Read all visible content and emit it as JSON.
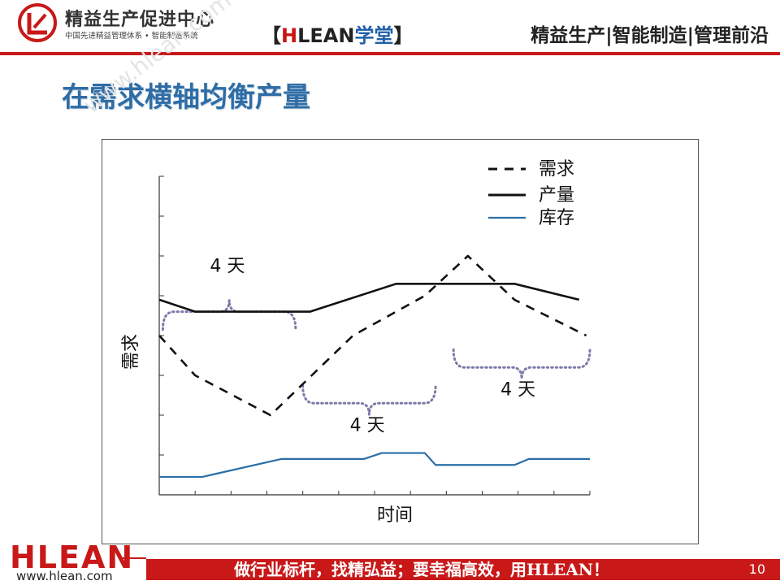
{
  "header": {
    "brand_name": "精益生产促进中心",
    "brand_sub": "中国先进精益管理体系 • 智能制造系统",
    "center_left_bracket": "【",
    "center_h": "H",
    "center_lean": "LEAN",
    "center_school": "学堂",
    "center_right_bracket": "】",
    "right_title": "精益生产|智能制造|管理前沿",
    "accent_color": "#c81818"
  },
  "slide": {
    "title": "在需求横轴均衡产量",
    "watermark": "www.hlean.com"
  },
  "chart_data": {
    "type": "line",
    "xlabel": "时间",
    "ylabel": "需求",
    "xlim": [
      0,
      12
    ],
    "ylim": [
      0,
      8
    ],
    "grid": false,
    "legend_placement": "top-right",
    "series": [
      {
        "name": "需求",
        "style": "dashed",
        "color": "#111111",
        "x": [
          0,
          1,
          3.1,
          5.4,
          7.4,
          8.6,
          9.9,
          11.9
        ],
        "y": [
          4.0,
          3.0,
          2.0,
          4.0,
          5.0,
          6.0,
          4.9,
          4.0
        ]
      },
      {
        "name": "产量",
        "style": "solid",
        "color": "#111111",
        "x": [
          0,
          1,
          4.2,
          6.6,
          9.9,
          11.7
        ],
        "y": [
          4.9,
          4.6,
          4.6,
          5.3,
          5.3,
          4.9
        ]
      },
      {
        "name": "库存",
        "style": "solid",
        "color": "#2a6fa8",
        "x": [
          0,
          1.2,
          3.4,
          5.7,
          6.2,
          7.4,
          7.7,
          9.9,
          10.3,
          12
        ],
        "y": [
          0.45,
          0.45,
          0.9,
          0.9,
          1.05,
          1.05,
          0.75,
          0.75,
          0.9,
          0.9
        ]
      }
    ],
    "annotations": [
      {
        "text": "4 天",
        "x": 1.9,
        "y": 5.6
      },
      {
        "text": "4 天",
        "x": 5.8,
        "y": 1.6
      },
      {
        "text": "4 天",
        "x": 10.0,
        "y": 2.5
      }
    ],
    "braces": [
      {
        "x_start": 0.1,
        "x_end": 3.8,
        "y": 4.6,
        "direction": "up",
        "color": "#7a7aa8"
      },
      {
        "x_start": 4.0,
        "x_end": 7.7,
        "y": 2.3,
        "direction": "down",
        "color": "#7a7aa8"
      },
      {
        "x_start": 8.2,
        "x_end": 12.0,
        "y": 3.2,
        "direction": "down",
        "color": "#7a7aa8"
      }
    ]
  },
  "footer": {
    "logo": "HLEAN",
    "url": "www.hlean.com",
    "slogan": "做行业标杆，找精弘益；要幸福高效，用HLEAN！",
    "page_number": "10"
  }
}
